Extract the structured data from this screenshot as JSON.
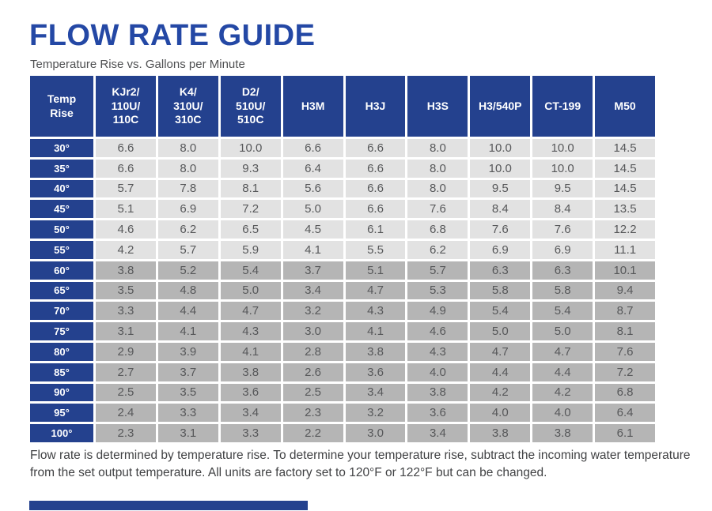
{
  "page": {
    "title": "FLOW RATE GUIDE",
    "subtitle": "Temperature Rise vs. Gallons per Minute",
    "footer_note": "Flow rate is determined by temperature rise. To determine your temperature rise, subtract the incoming water temperature from the set output temperature. All units are factory set to 120°F or 122°F but can be changed."
  },
  "colors": {
    "title_blue": "#2448a5",
    "header_blue": "#24418e",
    "row_light": "#e2e2e2",
    "row_dark": "#b5b5b5",
    "cell_text": "#57585a",
    "subtitle_text": "#4f5052",
    "footer_text": "#414244"
  },
  "table": {
    "columns": [
      "Temp\nRise",
      "KJr2/\n110U/\n110C",
      "K4/\n310U/\n310C",
      "D2/\n510U/\n510C",
      "H3M",
      "H3J",
      "H3S",
      "H3/540P",
      "CT-199",
      "M50"
    ],
    "rows": [
      {
        "temp": "30°",
        "band": "light",
        "values": [
          "6.6",
          "8.0",
          "10.0",
          "6.6",
          "6.6",
          "8.0",
          "10.0",
          "10.0",
          "14.5"
        ]
      },
      {
        "temp": "35°",
        "band": "light",
        "values": [
          "6.6",
          "8.0",
          "9.3",
          "6.4",
          "6.6",
          "8.0",
          "10.0",
          "10.0",
          "14.5"
        ]
      },
      {
        "temp": "40°",
        "band": "light",
        "values": [
          "5.7",
          "7.8",
          "8.1",
          "5.6",
          "6.6",
          "8.0",
          "9.5",
          "9.5",
          "14.5"
        ]
      },
      {
        "temp": "45°",
        "band": "light",
        "values": [
          "5.1",
          "6.9",
          "7.2",
          "5.0",
          "6.6",
          "7.6",
          "8.4",
          "8.4",
          "13.5"
        ]
      },
      {
        "temp": "50°",
        "band": "light",
        "values": [
          "4.6",
          "6.2",
          "6.5",
          "4.5",
          "6.1",
          "6.8",
          "7.6",
          "7.6",
          "12.2"
        ]
      },
      {
        "temp": "55°",
        "band": "light",
        "values": [
          "4.2",
          "5.7",
          "5.9",
          "4.1",
          "5.5",
          "6.2",
          "6.9",
          "6.9",
          "11.1"
        ]
      },
      {
        "temp": "60°",
        "band": "dark",
        "values": [
          "3.8",
          "5.2",
          "5.4",
          "3.7",
          "5.1",
          "5.7",
          "6.3",
          "6.3",
          "10.1"
        ]
      },
      {
        "temp": "65°",
        "band": "dark",
        "values": [
          "3.5",
          "4.8",
          "5.0",
          "3.4",
          "4.7",
          "5.3",
          "5.8",
          "5.8",
          "9.4"
        ]
      },
      {
        "temp": "70°",
        "band": "dark",
        "values": [
          "3.3",
          "4.4",
          "4.7",
          "3.2",
          "4.3",
          "4.9",
          "5.4",
          "5.4",
          "8.7"
        ]
      },
      {
        "temp": "75°",
        "band": "dark",
        "values": [
          "3.1",
          "4.1",
          "4.3",
          "3.0",
          "4.1",
          "4.6",
          "5.0",
          "5.0",
          "8.1"
        ]
      },
      {
        "temp": "80°",
        "band": "dark",
        "values": [
          "2.9",
          "3.9",
          "4.1",
          "2.8",
          "3.8",
          "4.3",
          "4.7",
          "4.7",
          "7.6"
        ]
      },
      {
        "temp": "85°",
        "band": "dark",
        "values": [
          "2.7",
          "3.7",
          "3.8",
          "2.6",
          "3.6",
          "4.0",
          "4.4",
          "4.4",
          "7.2"
        ]
      },
      {
        "temp": "90°",
        "band": "dark",
        "values": [
          "2.5",
          "3.5",
          "3.6",
          "2.5",
          "3.4",
          "3.8",
          "4.2",
          "4.2",
          "6.8"
        ]
      },
      {
        "temp": "95°",
        "band": "dark",
        "values": [
          "2.4",
          "3.3",
          "3.4",
          "2.3",
          "3.2",
          "3.6",
          "4.0",
          "4.0",
          "6.4"
        ]
      },
      {
        "temp": "100°",
        "band": "dark",
        "values": [
          "2.3",
          "3.1",
          "3.3",
          "2.2",
          "3.0",
          "3.4",
          "3.8",
          "3.8",
          "6.1"
        ]
      }
    ]
  }
}
